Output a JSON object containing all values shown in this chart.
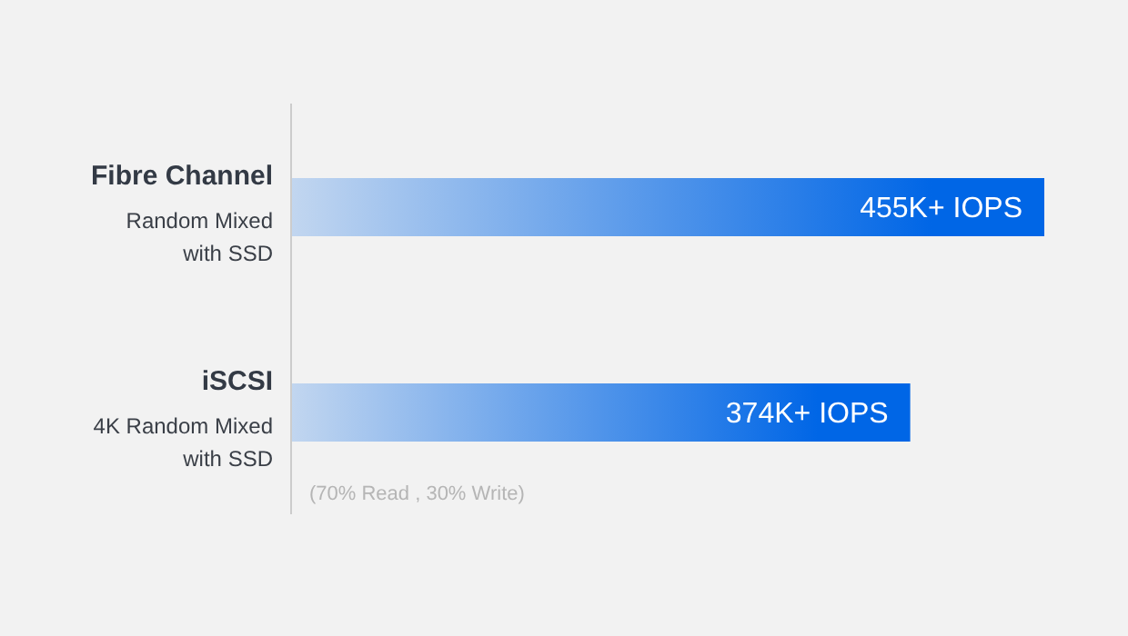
{
  "chart_data": {
    "type": "bar",
    "orientation": "horizontal",
    "categories": [
      "Fibre Channel",
      "iSCSI"
    ],
    "values": [
      455,
      374
    ],
    "value_labels": [
      "455K+ IOPS",
      "374K+ IOPS"
    ],
    "color": "#0066e6",
    "annotations": [
      "Random Mixed with SSD",
      "4K Random Mixed with SSD",
      "(70% Read , 30% Write)"
    ]
  }
}
